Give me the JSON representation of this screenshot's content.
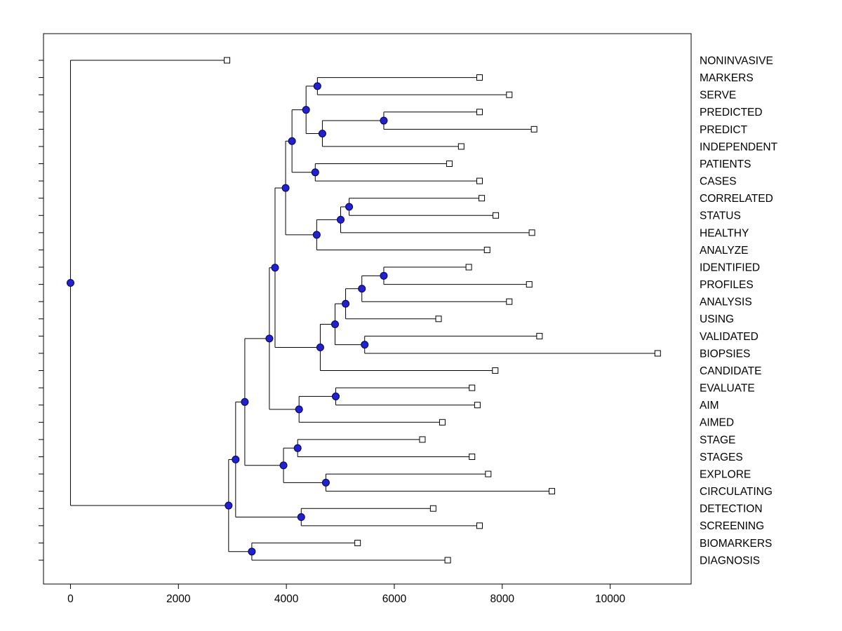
{
  "figure": {
    "background": "#ffffff"
  },
  "chart_data": {
    "type": "dendrogram",
    "orientation": "horizontal-root-left",
    "title": "",
    "xlabel": "",
    "ylabel": "",
    "x_range": [
      -500,
      11500
    ],
    "x_ticks": [
      0,
      2000,
      4000,
      6000,
      8000,
      10000
    ],
    "x_tick_labels": [
      "0",
      "2000",
      "4000",
      "6000",
      "8000",
      "10000"
    ],
    "grid": false,
    "legend": "none",
    "markers": {
      "leaf": "open-square",
      "internal": "filled-circle"
    },
    "colors": {
      "line": "#000000",
      "node_fill": "#2222cc",
      "node_edge": "#000066",
      "leaf_fill": "#ffffff",
      "leaf_edge": "#000000",
      "axis": "#000000"
    },
    "leaves": [
      {
        "label": "NONINVASIVE",
        "x": 2900
      },
      {
        "label": "MARKERS",
        "x": 7580
      },
      {
        "label": "SERVE",
        "x": 8130
      },
      {
        "label": "PREDICTED",
        "x": 7580
      },
      {
        "label": "PREDICT",
        "x": 8590
      },
      {
        "label": "INDEPENDENT",
        "x": 7240
      },
      {
        "label": "PATIENTS",
        "x": 7020
      },
      {
        "label": "CASES",
        "x": 7580
      },
      {
        "label": "CORRELATED",
        "x": 7620
      },
      {
        "label": "STATUS",
        "x": 7880
      },
      {
        "label": "HEALTHY",
        "x": 8550
      },
      {
        "label": "ANALYZE",
        "x": 7720
      },
      {
        "label": "IDENTIFIED",
        "x": 7380
      },
      {
        "label": "PROFILES",
        "x": 8500
      },
      {
        "label": "ANALYSIS",
        "x": 8130
      },
      {
        "label": "USING",
        "x": 6820
      },
      {
        "label": "VALIDATED",
        "x": 8690
      },
      {
        "label": "BIOPSIES",
        "x": 10880
      },
      {
        "label": "CANDIDATE",
        "x": 7870
      },
      {
        "label": "EVALUATE",
        "x": 7440
      },
      {
        "label": "AIM",
        "x": 7540
      },
      {
        "label": "AIMED",
        "x": 6890
      },
      {
        "label": "STAGE",
        "x": 6520
      },
      {
        "label": "STAGES",
        "x": 7440
      },
      {
        "label": "EXPLORE",
        "x": 7740
      },
      {
        "label": "CIRCULATING",
        "x": 8920
      },
      {
        "label": "DETECTION",
        "x": 6720
      },
      {
        "label": "SCREENING",
        "x": 7580
      },
      {
        "label": "BIOMARKERS",
        "x": 5320
      },
      {
        "label": "DIAGNOSIS",
        "x": 6990
      }
    ],
    "merges": [
      {
        "id": "m1",
        "children": [
          "MARKERS",
          "SERVE"
        ],
        "x": 4575
      },
      {
        "id": "m2",
        "children": [
          "PREDICTED",
          "PREDICT"
        ],
        "x": 5805
      },
      {
        "id": "m3",
        "children": [
          "m2",
          "INDEPENDENT"
        ],
        "x": 4667
      },
      {
        "id": "m4",
        "children": [
          "m1",
          "m3"
        ],
        "x": 4365
      },
      {
        "id": "m5",
        "children": [
          "PATIENTS",
          "CASES"
        ],
        "x": 4535
      },
      {
        "id": "m6",
        "children": [
          "m4",
          "m5"
        ],
        "x": 4104
      },
      {
        "id": "m7",
        "children": [
          "CORRELATED",
          "STATUS"
        ],
        "x": 5163
      },
      {
        "id": "m8",
        "children": [
          "m7",
          "HEALTHY"
        ],
        "x": 5006
      },
      {
        "id": "m9",
        "children": [
          "m8",
          "ANALYZE"
        ],
        "x": 4562
      },
      {
        "id": "m10",
        "children": [
          "m6",
          "m9"
        ],
        "x": 3986
      },
      {
        "id": "m11",
        "children": [
          "IDENTIFIED",
          "PROFILES"
        ],
        "x": 5805
      },
      {
        "id": "m12",
        "children": [
          "m11",
          "ANALYSIS"
        ],
        "x": 5399
      },
      {
        "id": "m13",
        "children": [
          "m12",
          "USING"
        ],
        "x": 5098
      },
      {
        "id": "m14",
        "children": [
          "VALIDATED",
          "BIOPSIES"
        ],
        "x": 5451
      },
      {
        "id": "m15",
        "children": [
          "m13",
          "m14"
        ],
        "x": 4902
      },
      {
        "id": "m16",
        "children": [
          "m15",
          "CANDIDATE"
        ],
        "x": 4628
      },
      {
        "id": "m17",
        "children": [
          "m10",
          "m16"
        ],
        "x": 3790
      },
      {
        "id": "m18",
        "children": [
          "EVALUATE",
          "AIM"
        ],
        "x": 4915
      },
      {
        "id": "m19",
        "children": [
          "m18",
          "AIMED"
        ],
        "x": 4235
      },
      {
        "id": "m20",
        "children": [
          "m17",
          "m19"
        ],
        "x": 3685
      },
      {
        "id": "m21",
        "children": [
          "STAGE",
          "STAGES"
        ],
        "x": 4209
      },
      {
        "id": "m22",
        "children": [
          "EXPLORE",
          "CIRCULATING"
        ],
        "x": 4732
      },
      {
        "id": "m23",
        "children": [
          "m21",
          "m22"
        ],
        "x": 3947
      },
      {
        "id": "m24",
        "children": [
          "m20",
          "m23"
        ],
        "x": 3230
      },
      {
        "id": "m25",
        "children": [
          "DETECTION",
          "SCREENING"
        ],
        "x": 4275
      },
      {
        "id": "m26",
        "children": [
          "m24",
          "m25"
        ],
        "x": 3060
      },
      {
        "id": "m27",
        "children": [
          "BIOMARKERS",
          "DIAGNOSIS"
        ],
        "x": 3360
      },
      {
        "id": "m28",
        "children": [
          "m26",
          "m27"
        ],
        "x": 2930
      },
      {
        "id": "m29",
        "children": [
          "NONINVASIVE",
          "m28"
        ],
        "x": 0
      }
    ]
  }
}
